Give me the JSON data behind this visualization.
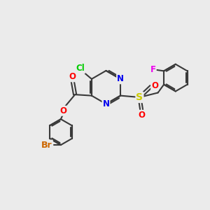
{
  "bg_color": "#ebebeb",
  "bond_color": "#3a3a3a",
  "bond_width": 1.5,
  "atom_colors": {
    "Cl": "#00cc00",
    "N": "#0000ee",
    "O": "#ff0000",
    "S": "#cccc00",
    "Br": "#cc6600",
    "F": "#ee00ee",
    "C": "#3a3a3a"
  },
  "font_size": 8.5,
  "fig_size": [
    3.0,
    3.0
  ],
  "dpi": 100,
  "xlim": [
    0,
    10
  ],
  "ylim": [
    0,
    10
  ]
}
